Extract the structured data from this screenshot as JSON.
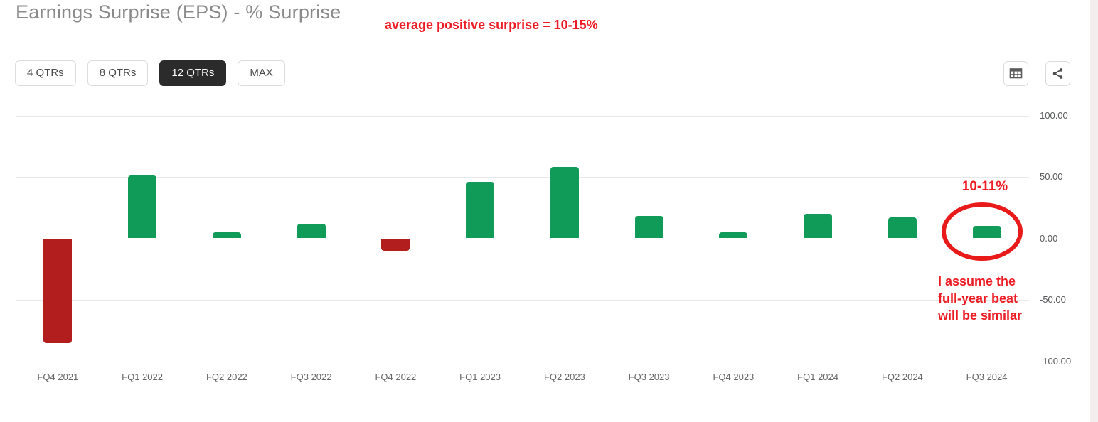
{
  "page": {
    "title": "Earnings Surprise (EPS) - % Surprise",
    "top_annotation": "average positive surprise = 10-15%"
  },
  "toolbar": {
    "range_buttons": [
      {
        "label": "4 QTRs",
        "selected": false
      },
      {
        "label": "8 QTRs",
        "selected": false
      },
      {
        "label": "12 QTRs",
        "selected": true
      },
      {
        "label": "MAX",
        "selected": false
      }
    ],
    "icon_buttons": [
      {
        "name": "table-view-icon"
      },
      {
        "name": "share-icon"
      }
    ]
  },
  "chart_data": {
    "type": "bar",
    "title": "Earnings Surprise (EPS) - % Surprise",
    "categories": [
      "FQ4 2021",
      "FQ1 2022",
      "FQ2 2022",
      "FQ3 2022",
      "FQ4 2022",
      "FQ1 2023",
      "FQ2 2023",
      "FQ3 2023",
      "FQ4 2023",
      "FQ1 2024",
      "FQ2 2024",
      "FQ3 2024"
    ],
    "values": [
      -85,
      51,
      5,
      12,
      -10,
      46,
      58,
      18,
      5,
      20,
      17,
      10
    ],
    "ylim": [
      -100,
      100
    ],
    "yticks": [
      {
        "value": 100,
        "label": "100.00"
      },
      {
        "value": 50,
        "label": "50.00"
      },
      {
        "value": 0,
        "label": "0.00"
      },
      {
        "value": -50,
        "label": "-50.00"
      },
      {
        "value": -100,
        "label": "-100.00"
      }
    ],
    "grid": true,
    "legend": "none",
    "positive_color": "#119b58",
    "negative_color": "#b21e1e",
    "annotations": {
      "top_note": "average positive surprise = 10-15%",
      "last_bar_label": "10-11%",
      "side_note": "I assume the\nfull-year beat\nwill be similar",
      "circled_category": "FQ3 2024",
      "annotation_color": "#ed1c24"
    }
  }
}
